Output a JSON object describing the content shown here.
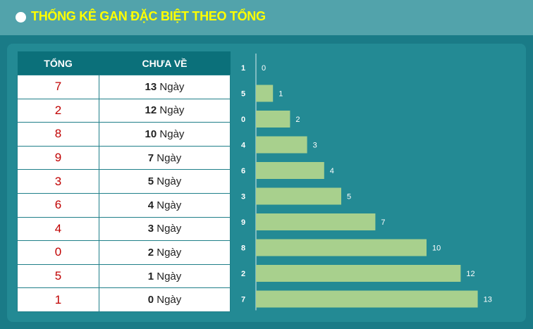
{
  "header": {
    "title": "THỐNG KÊ GAN ĐẶC BIỆT THEO TỔNG"
  },
  "table": {
    "col_tong": "TỔNG",
    "col_chuave": "CHƯA VỀ",
    "unit": "Ngày",
    "rows": [
      {
        "tong": "7",
        "days": "13"
      },
      {
        "tong": "2",
        "days": "12"
      },
      {
        "tong": "8",
        "days": "10"
      },
      {
        "tong": "9",
        "days": "7"
      },
      {
        "tong": "3",
        "days": "5"
      },
      {
        "tong": "6",
        "days": "4"
      },
      {
        "tong": "4",
        "days": "3"
      },
      {
        "tong": "0",
        "days": "2"
      },
      {
        "tong": "5",
        "days": "1"
      },
      {
        "tong": "1",
        "days": "0"
      }
    ]
  },
  "chart_data": {
    "type": "bar",
    "orientation": "horizontal",
    "categories": [
      "1",
      "5",
      "0",
      "4",
      "6",
      "3",
      "9",
      "8",
      "2",
      "7"
    ],
    "values": [
      0,
      1,
      2,
      3,
      4,
      5,
      7,
      10,
      12,
      13
    ],
    "xlim": [
      0,
      13
    ],
    "grid": false,
    "bar_color": "#a8d08d"
  }
}
